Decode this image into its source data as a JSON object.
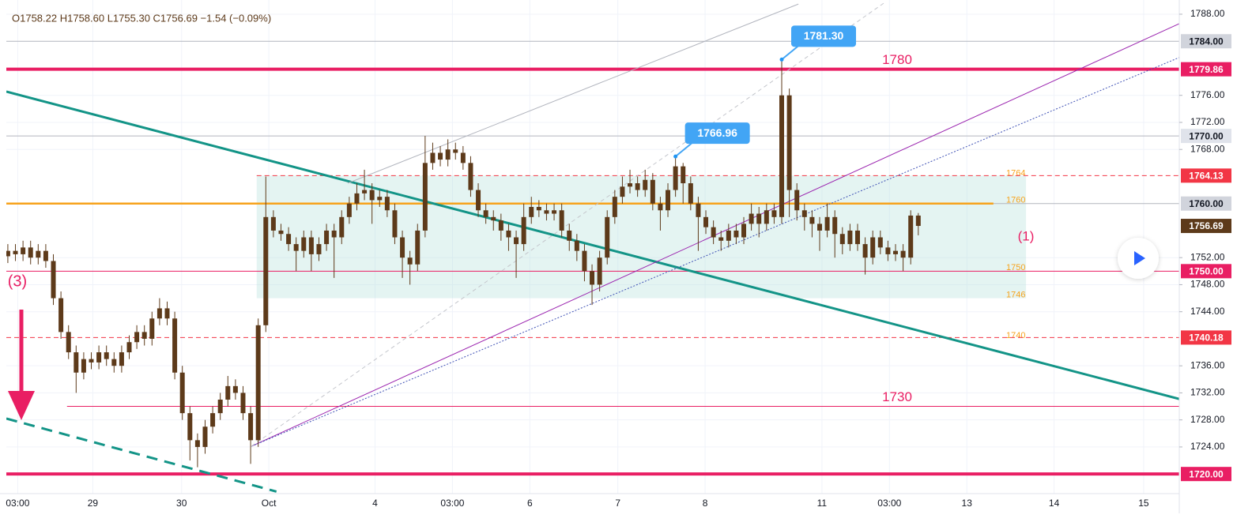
{
  "chart_data": {
    "type": "candlestick",
    "title": "O1758.22 H1758.60 L1755.30 C1756.69 −1.54 (−0.09%)",
    "candle_color": "#5d3a1a",
    "grid": true,
    "xlim": [
      -0.2,
      154.4
    ],
    "ylim": [
      1717.1,
      1790.1
    ],
    "xticks": [
      {
        "value": 1.3,
        "label": "03:00"
      },
      {
        "value": 11.2,
        "label": "29"
      },
      {
        "value": 22.9,
        "label": "30"
      },
      {
        "value": 34.4,
        "label": "Oct"
      },
      {
        "value": 48.4,
        "label": "4"
      },
      {
        "value": 58.6,
        "label": "03:00"
      },
      {
        "value": 68.8,
        "label": "6"
      },
      {
        "value": 80.4,
        "label": "7"
      },
      {
        "value": 91.9,
        "label": "8"
      },
      {
        "value": 107.3,
        "label": "11"
      },
      {
        "value": 116.2,
        "label": "03:00"
      },
      {
        "value": 126.4,
        "label": "13"
      },
      {
        "value": 137.9,
        "label": "14"
      },
      {
        "value": 149.7,
        "label": "15"
      }
    ],
    "yticks": [
      {
        "value": 1788,
        "label": "1788.00"
      },
      {
        "value": 1776,
        "label": "1776.00"
      },
      {
        "value": 1772,
        "label": "1772.00"
      },
      {
        "value": 1768,
        "label": "1768.00"
      },
      {
        "value": 1752,
        "label": "1752.00"
      },
      {
        "value": 1748,
        "label": "1748.00"
      },
      {
        "value": 1744,
        "label": "1744.00"
      },
      {
        "value": 1736,
        "label": "1736.00"
      },
      {
        "value": 1732,
        "label": "1732.00"
      },
      {
        "value": 1728,
        "label": "1728.00"
      },
      {
        "value": 1724,
        "label": "1724.00"
      }
    ],
    "x": [
      0,
      1,
      2,
      3,
      4,
      5,
      6,
      7,
      8,
      9,
      10,
      11,
      12,
      13,
      14,
      15,
      16,
      17,
      18,
      19,
      20,
      21,
      22,
      23,
      24,
      25,
      26,
      27,
      28,
      29,
      30,
      31,
      32,
      33,
      34,
      35,
      36,
      37,
      38,
      39,
      40,
      41,
      42,
      43,
      44,
      45,
      46,
      47,
      48,
      49,
      50,
      51,
      52,
      53,
      54,
      55,
      56,
      57,
      58,
      59,
      60,
      61,
      62,
      63,
      64,
      65,
      66,
      67,
      68,
      69,
      70,
      71,
      72,
      73,
      74,
      75,
      76,
      77,
      78,
      79,
      80,
      81,
      82,
      83,
      84,
      85,
      86,
      87,
      88,
      89,
      90,
      91,
      92,
      93,
      94,
      95,
      96,
      97,
      98,
      99,
      100,
      101,
      102,
      103,
      104,
      105,
      106,
      107,
      108,
      109,
      110,
      111,
      112,
      113,
      114,
      115,
      116,
      117,
      118,
      119,
      120
    ],
    "open": [
      1752.2,
      1753,
      1752.5,
      1753.5,
      1752,
      1753,
      1751.5,
      1746,
      1741,
      1738,
      1735,
      1737,
      1736.5,
      1738,
      1737,
      1736,
      1738,
      1739.5,
      1741,
      1740,
      1743,
      1744.5,
      1743,
      1735,
      1729,
      1725,
      1724,
      1727,
      1729,
      1731,
      1733,
      1732,
      1729,
      1725,
      1742,
      1758,
      1756,
      1755.5,
      1754,
      1753,
      1755,
      1752.5,
      1754,
      1756,
      1755,
      1758,
      1760,
      1761.5,
      1762,
      1760.5,
      1761,
      1759,
      1755,
      1752,
      1751,
      1756,
      1766,
      1767.5,
      1766.5,
      1768,
      1767.5,
      1766,
      1762,
      1759,
      1758,
      1757.5,
      1756,
      1755,
      1754,
      1758,
      1759.5,
      1759,
      1758.5,
      1759,
      1756,
      1754.5,
      1753,
      1750,
      1748,
      1752,
      1758,
      1761,
      1762.5,
      1763,
      1762,
      1763.5,
      1760,
      1759,
      1762,
      1765.5,
      1763,
      1760,
      1758,
      1756.5,
      1755,
      1754.5,
      1756,
      1755,
      1757,
      1758.5,
      1757,
      1759,
      1758,
      1776,
      1762,
      1759,
      1758,
      1757,
      1756,
      1758,
      1755.5,
      1754,
      1756,
      1754,
      1752,
      1755,
      1753.5,
      1752.5,
      1753,
      1752,
      1758.22
    ],
    "high": [
      1754,
      1754,
      1754.5,
      1754.5,
      1754,
      1754,
      1752.5,
      1747,
      1742,
      1739,
      1738,
      1738,
      1739,
      1739,
      1738,
      1739,
      1740.5,
      1742,
      1742,
      1744,
      1746,
      1745.5,
      1744,
      1736,
      1730,
      1726,
      1728,
      1730,
      1732,
      1734.5,
      1734,
      1733,
      1730,
      1743,
      1764,
      1759,
      1757,
      1756.5,
      1755,
      1756,
      1756,
      1755,
      1757,
      1757,
      1759,
      1761,
      1763,
      1765,
      1763,
      1762,
      1762,
      1760,
      1756,
      1753,
      1757,
      1770,
      1769,
      1768.5,
      1769.5,
      1769,
      1768.5,
      1767,
      1763,
      1760,
      1759,
      1758.5,
      1757,
      1756,
      1760,
      1761,
      1760.5,
      1760,
      1760,
      1760,
      1757,
      1755.5,
      1754,
      1751,
      1753,
      1759,
      1762,
      1764,
      1765,
      1764,
      1765,
      1764.5,
      1761,
      1763,
      1766.96,
      1766,
      1764,
      1761,
      1759,
      1757.5,
      1756,
      1757,
      1757,
      1758,
      1760,
      1759.5,
      1760,
      1760,
      1781.3,
      1777,
      1763,
      1760,
      1759,
      1758,
      1760,
      1759,
      1756.5,
      1757,
      1757,
      1755,
      1756,
      1756,
      1754.5,
      1754,
      1754,
      1759,
      1758.6
    ],
    "low": [
      1751.2,
      1751.5,
      1751.5,
      1751,
      1751,
      1750.5,
      1745,
      1740,
      1737,
      1732,
      1734,
      1735.5,
      1735.5,
      1736,
      1735,
      1735,
      1737,
      1738.5,
      1739,
      1739,
      1742,
      1742,
      1734,
      1728,
      1722,
      1721,
      1723,
      1726,
      1728,
      1730,
      1731,
      1728,
      1721.5,
      1724,
      1741,
      1755,
      1754.5,
      1753,
      1750,
      1752,
      1750,
      1751.5,
      1753,
      1749,
      1754,
      1757,
      1759,
      1760.5,
      1757,
      1759.5,
      1758,
      1754,
      1749,
      1748,
      1750,
      1755,
      1765,
      1765.5,
      1765.5,
      1766.5,
      1765,
      1761,
      1758,
      1757,
      1756,
      1754.5,
      1753,
      1749,
      1753,
      1757,
      1758,
      1757.5,
      1757.5,
      1755,
      1753,
      1751.5,
      1748.5,
      1745,
      1747,
      1751,
      1757,
      1760,
      1761.5,
      1761,
      1761,
      1759,
      1756,
      1758,
      1761,
      1760,
      1759,
      1753,
      1755.5,
      1754,
      1753,
      1753.5,
      1754,
      1754,
      1756,
      1755,
      1756,
      1757,
      1757,
      1758,
      1757.5,
      1756,
      1755,
      1753,
      1755,
      1752,
      1752.5,
      1753,
      1753,
      1749.5,
      1751,
      1752.5,
      1751.5,
      1751.5,
      1750,
      1751,
      1755.3
    ],
    "close": [
      1753,
      1752.5,
      1753.5,
      1752,
      1753,
      1751.5,
      1746,
      1741,
      1738,
      1735,
      1737,
      1736.5,
      1738,
      1737,
      1736,
      1738,
      1739.5,
      1741,
      1740,
      1743,
      1744.5,
      1743,
      1735,
      1729,
      1725,
      1724,
      1727,
      1729,
      1731,
      1733,
      1732,
      1729,
      1725,
      1742,
      1758,
      1756,
      1755.5,
      1754,
      1753,
      1755,
      1752.5,
      1754,
      1756,
      1755,
      1758,
      1760,
      1761.5,
      1762,
      1760.5,
      1761,
      1759,
      1755,
      1752,
      1751,
      1756,
      1766,
      1767.5,
      1766.5,
      1768,
      1767.5,
      1766,
      1762,
      1759,
      1758,
      1757.5,
      1756,
      1755,
      1754,
      1758,
      1759.5,
      1759,
      1758.5,
      1759,
      1756,
      1754.5,
      1753,
      1750,
      1748,
      1752,
      1758,
      1761,
      1762.5,
      1763,
      1762,
      1763.5,
      1760,
      1759,
      1762,
      1765.5,
      1763,
      1760,
      1758,
      1756.5,
      1755,
      1754.5,
      1756,
      1755,
      1757,
      1758.5,
      1757,
      1759,
      1758,
      1776,
      1762,
      1759,
      1758,
      1757,
      1756,
      1758,
      1755.5,
      1754,
      1756,
      1754,
      1752,
      1755,
      1753.5,
      1752.5,
      1753,
      1752,
      1758.22,
      1756.69
    ],
    "zone": {
      "xlim": [
        32.8,
        134.2
      ],
      "ylim": [
        1746,
        1764.13
      ],
      "color": "#b2dfdb",
      "label_color": "#f7a21b",
      "labels": [
        1764,
        1760,
        1750,
        1746,
        1740
      ]
    },
    "hlines": [
      {
        "value": 1784,
        "tag": "1784.00",
        "color": "#b2b5be",
        "tag_color": "#d1d4dc",
        "width": 1
      },
      {
        "value": 1779.86,
        "tag": "1779.86",
        "color": "#e91e63",
        "tag_color": "#e91e63",
        "width": 4,
        "text": "1780"
      },
      {
        "value": 1770,
        "tag": "1770.00",
        "color": "#b2b5be",
        "tag_color": "#e0e3eb",
        "width": 1
      },
      {
        "value": 1764.13,
        "tag": "1764.13",
        "color": "#f23645",
        "tag_color": "#f23645",
        "width": 1,
        "dash": true,
        "from": 32.8
      },
      {
        "value": 1760,
        "tag": "1760.00",
        "color": "#b2b5be",
        "tag_color": "#d1d4dc",
        "width": 1
      },
      {
        "value": 1760,
        "color": "#f7a21b",
        "width": 2.5,
        "to": 129.9
      },
      {
        "value": 1750,
        "tag": "1750.00",
        "color": "#e91e63",
        "tag_color": "#e91e63",
        "width": 1
      },
      {
        "value": 1740.18,
        "tag": "1740.18",
        "color": "#f23645",
        "tag_color": "#f23645",
        "width": 1,
        "dash": true
      },
      {
        "value": 1730,
        "color": "#e91e63",
        "width": 1,
        "from": 7.8,
        "text": "1730"
      },
      {
        "value": 1720,
        "tag": "1720.00",
        "color": "#e91e63",
        "tag_color": "#e91e63",
        "width": 4
      }
    ],
    "last_price": {
      "value": 1756.69,
      "label": "1756.69",
      "color": "#5d3a1a"
    },
    "trendlines": [
      {
        "x": [
          -0.2,
          154.4
        ],
        "y": [
          1776.55,
          1731.1
        ],
        "color": "#139487",
        "width": 3
      },
      {
        "x": [
          -0.2,
          35.4
        ],
        "y": [
          1728.2,
          1717.4
        ],
        "color": "#139487",
        "width": 3,
        "dash": true
      },
      {
        "x": [
          32.1,
          154.4
        ],
        "y": [
          1724.1,
          1786.6
        ],
        "color": "#9c27b0",
        "width": 1
      },
      {
        "x": [
          32.1,
          154.4
        ],
        "y": [
          1724.1,
          1781.6
        ],
        "color": "#3f51b5",
        "width": 1,
        "dotted": true
      },
      {
        "x": [
          32.1,
          115.6
        ],
        "y": [
          1724.1,
          1789.75
        ],
        "color": "#c4c6cc",
        "width": 1,
        "dash": true
      },
      {
        "x": [
          44.8,
          104.2
        ],
        "y": [
          1763.0,
          1789.5
        ],
        "color": "#b2b5be",
        "width": 1
      }
    ],
    "callouts": [
      {
        "x": 102,
        "value": 1781.3,
        "label": "1781.30"
      },
      {
        "x": 88,
        "value": 1766.96,
        "label": "1766.96"
      }
    ],
    "wave_labels": [
      "(3)",
      "(1)"
    ]
  }
}
